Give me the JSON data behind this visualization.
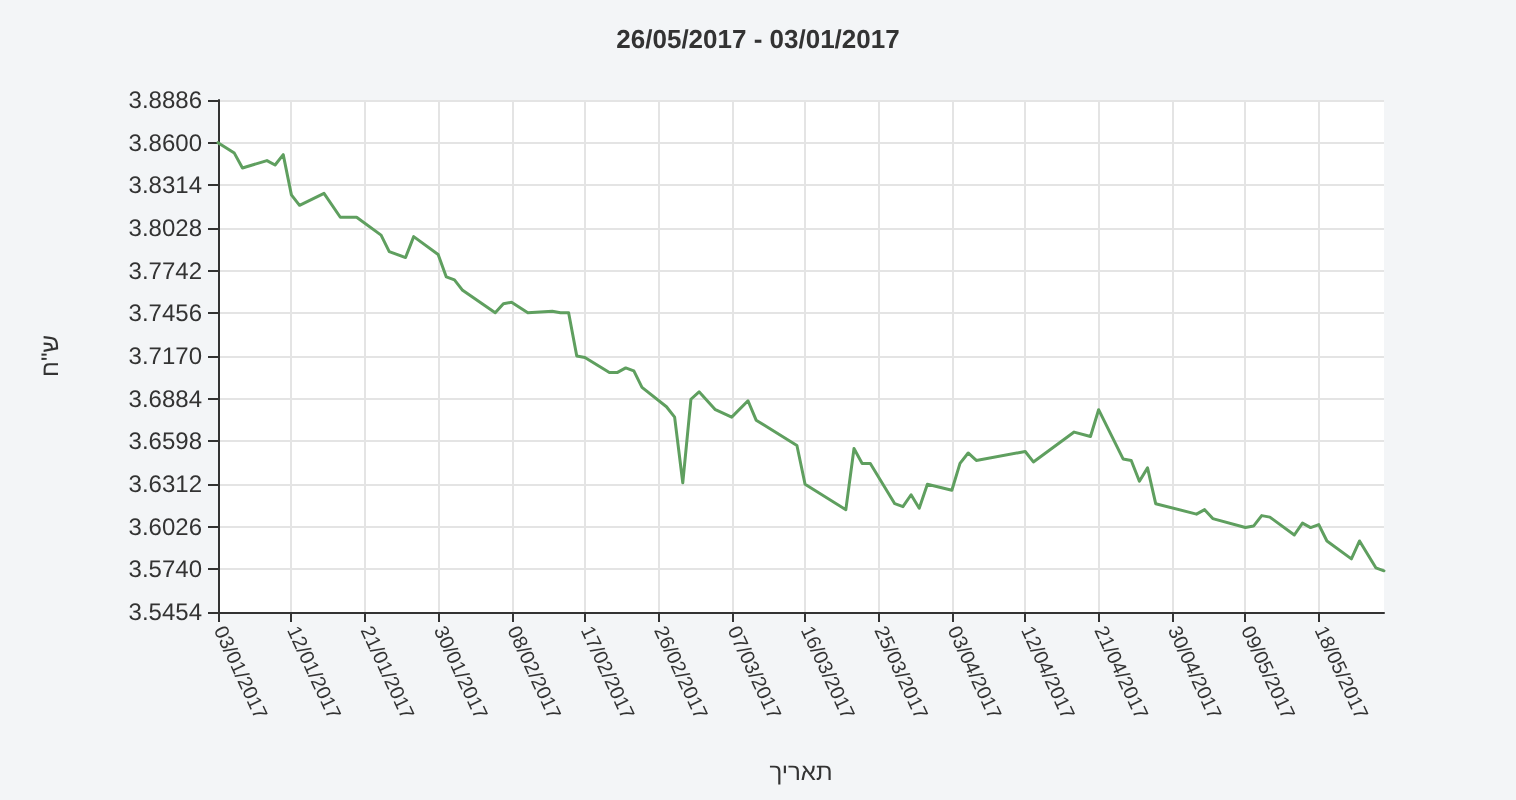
{
  "chart_data": {
    "type": "line",
    "title": "26/05/2017 - 03/01/2017",
    "xlabel": "תאריך",
    "ylabel": "ש\"ח",
    "x": [
      "2017-01-03",
      "2017-01-05",
      "2017-01-06",
      "2017-01-09",
      "2017-01-10",
      "2017-01-11",
      "2017-01-12",
      "2017-01-13",
      "2017-01-16",
      "2017-01-18",
      "2017-01-20",
      "2017-01-23",
      "2017-01-24",
      "2017-01-26",
      "2017-01-27",
      "2017-01-30",
      "2017-01-31",
      "2017-02-01",
      "2017-02-02",
      "2017-02-06",
      "2017-02-07",
      "2017-02-08",
      "2017-02-10",
      "2017-02-13",
      "2017-02-14",
      "2017-02-15",
      "2017-02-16",
      "2017-02-17",
      "2017-02-20",
      "2017-02-21",
      "2017-02-22",
      "2017-02-23",
      "2017-02-24",
      "2017-02-27",
      "2017-02-28",
      "2017-03-01",
      "2017-03-02",
      "2017-03-03",
      "2017-03-05",
      "2017-03-07",
      "2017-03-09",
      "2017-03-10",
      "2017-03-15",
      "2017-03-16",
      "2017-03-21",
      "2017-03-22",
      "2017-03-23",
      "2017-03-24",
      "2017-03-27",
      "2017-03-28",
      "2017-03-29",
      "2017-03-30",
      "2017-03-31",
      "2017-04-03",
      "2017-04-04",
      "2017-04-05",
      "2017-04-06",
      "2017-04-12",
      "2017-04-13",
      "2017-04-18",
      "2017-04-20",
      "2017-04-21",
      "2017-04-24",
      "2017-04-25",
      "2017-04-26",
      "2017-04-27",
      "2017-04-28",
      "2017-05-03",
      "2017-05-04",
      "2017-05-05",
      "2017-05-09",
      "2017-05-10",
      "2017-05-11",
      "2017-05-12",
      "2017-05-15",
      "2017-05-16",
      "2017-05-17",
      "2017-05-18",
      "2017-05-19",
      "2017-05-22",
      "2017-05-23",
      "2017-05-25",
      "2017-05-26"
    ],
    "series": [
      {
        "color": "#5f9f5f",
        "values": [
          3.86,
          3.853,
          3.843,
          3.848,
          3.845,
          3.852,
          3.825,
          3.818,
          3.826,
          3.81,
          3.81,
          3.798,
          3.787,
          3.783,
          3.797,
          3.785,
          3.77,
          3.768,
          3.761,
          3.746,
          3.752,
          3.753,
          3.746,
          3.747,
          3.746,
          3.746,
          3.717,
          3.716,
          3.706,
          3.706,
          3.709,
          3.707,
          3.696,
          3.683,
          3.676,
          3.632,
          3.688,
          3.693,
          3.681,
          3.676,
          3.687,
          3.674,
          3.657,
          3.631,
          3.614,
          3.655,
          3.645,
          3.645,
          3.618,
          3.616,
          3.624,
          3.615,
          3.631,
          3.627,
          3.645,
          3.652,
          3.647,
          3.653,
          3.646,
          3.666,
          3.663,
          3.681,
          3.648,
          3.647,
          3.633,
          3.642,
          3.618,
          3.611,
          3.614,
          3.608,
          3.602,
          3.603,
          3.61,
          3.609,
          3.597,
          3.605,
          3.602,
          3.604,
          3.593,
          3.581,
          3.593,
          3.575,
          3.573
        ]
      }
    ],
    "xlim": [
      "2017-01-03",
      "2017-05-26"
    ],
    "xticks": [
      {
        "value": "2017-01-03",
        "label": "03/01/2017"
      },
      {
        "value": "2017-01-12",
        "label": "12/01/2017"
      },
      {
        "value": "2017-01-21",
        "label": "21/01/2017"
      },
      {
        "value": "2017-01-30",
        "label": "30/01/2017"
      },
      {
        "value": "2017-02-08",
        "label": "08/02/2017"
      },
      {
        "value": "2017-02-17",
        "label": "17/02/2017"
      },
      {
        "value": "2017-02-26",
        "label": "26/02/2017"
      },
      {
        "value": "2017-03-07",
        "label": "07/03/2017"
      },
      {
        "value": "2017-03-16",
        "label": "16/03/2017"
      },
      {
        "value": "2017-03-25",
        "label": "25/03/2017"
      },
      {
        "value": "2017-04-03",
        "label": "03/04/2017"
      },
      {
        "value": "2017-04-12",
        "label": "12/04/2017"
      },
      {
        "value": "2017-04-21",
        "label": "21/04/2017"
      },
      {
        "value": "2017-04-30",
        "label": "30/04/2017"
      },
      {
        "value": "2017-05-09",
        "label": "09/05/2017"
      },
      {
        "value": "2017-05-18",
        "label": "18/05/2017"
      }
    ],
    "ylim": [
      3.5454,
      3.8886
    ],
    "yticks": [
      {
        "value": 3.5454,
        "label": "3.5454"
      },
      {
        "value": 3.574,
        "label": "3.5740"
      },
      {
        "value": 3.6026,
        "label": "3.6026"
      },
      {
        "value": 3.6312,
        "label": "3.6312"
      },
      {
        "value": 3.6598,
        "label": "3.6598"
      },
      {
        "value": 3.6884,
        "label": "3.6884"
      },
      {
        "value": 3.717,
        "label": "3.7170"
      },
      {
        "value": 3.7456,
        "label": "3.7456"
      },
      {
        "value": 3.7742,
        "label": "3.7742"
      },
      {
        "value": 3.8028,
        "label": "3.8028"
      },
      {
        "value": 3.8314,
        "label": "3.8314"
      },
      {
        "value": 3.86,
        "label": "3.8600"
      },
      {
        "value": 3.8886,
        "label": "3.8886"
      }
    ],
    "grid": true,
    "marker": "none",
    "line_style": "solid"
  }
}
